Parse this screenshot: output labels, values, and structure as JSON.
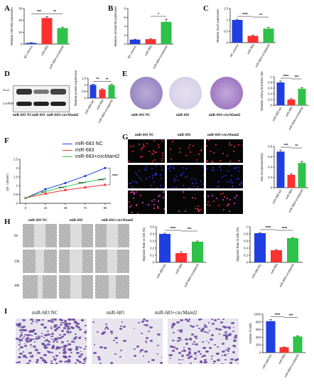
{
  "panels": {
    "A": "A",
    "B": "B",
    "C": "C",
    "D": "D",
    "E": "E",
    "F": "F",
    "G": "G",
    "H": "H",
    "I": "I"
  },
  "colors": {
    "blue": "#1f3fe0",
    "red": "#ff3030",
    "green": "#2ec24a",
    "purple": "#6a4aa0",
    "red_fluor": "#e0202a",
    "blue_fluor": "#2030c0"
  },
  "labels": {
    "d_blot": [
      "Sox2",
      "GAPDH"
    ],
    "d_lanes": [
      "miR-683 NC",
      "miR-683",
      "miR-683+circMaml2"
    ],
    "e_imgs": [
      "miR-683 NC",
      "miR-683",
      "miR-683+circMaml2"
    ],
    "g_cols": [
      "miR-683 NC",
      "miR-683",
      "miR-683+circMaml2"
    ],
    "h_cols": [
      "miR-683 NC",
      "miR-683",
      "miR-683+circMaml2"
    ],
    "h_rows": [
      "0h",
      "24h",
      "48h"
    ],
    "i_cols": [
      "miR-683  NC",
      "miR-683",
      "miR-683+circMaml2"
    ]
  },
  "chart_data": [
    {
      "id": "A",
      "type": "bar",
      "ylabel": "Relative miR-683 expression",
      "categories": [
        "NC mimics",
        "miR-683",
        "miR-683+circMaml2"
      ],
      "values": [
        1,
        22,
        13.5
      ],
      "errors": [
        0.3,
        1.2,
        0.8
      ],
      "ylim": [
        0,
        30
      ],
      "yticks": [
        0,
        10,
        20,
        30
      ],
      "sig": [
        "***",
        "**"
      ]
    },
    {
      "id": "B",
      "type": "bar",
      "ylabel": "Relative circMaml2 expression",
      "categories": [
        "NC mimics",
        "miR-683",
        "miR-683+circMaml2"
      ],
      "values": [
        1,
        1.1,
        5
      ],
      "errors": [
        0.1,
        0.1,
        0.6
      ],
      "ylim": [
        0,
        8
      ],
      "yticks": [
        0,
        2,
        4,
        6,
        8
      ],
      "sig": [
        "*"
      ]
    },
    {
      "id": "C",
      "type": "bar",
      "ylabel": "Relative Sox2 expression",
      "categories": [
        "NC mimics",
        "miR-683",
        "miR-683+circMaml2"
      ],
      "values": [
        1,
        0.3,
        0.62
      ],
      "errors": [
        0.03,
        0.03,
        0.05
      ],
      "ylim": [
        0,
        1.5
      ],
      "yticks": [
        0,
        0.5,
        1.0,
        1.5
      ],
      "sig": [
        "****",
        "**"
      ]
    },
    {
      "id": "D",
      "type": "bar",
      "ylabel": "Relative protein expression",
      "categories": [
        "miR-683 NC",
        "miR-683",
        "miR-683+circMaml2"
      ],
      "values": [
        1,
        0.65,
        0.98
      ],
      "errors": [
        0.05,
        0.05,
        0.06
      ],
      "ylim": [
        0,
        1.5
      ],
      "yticks": [
        0,
        0.5,
        1.0,
        1.5
      ],
      "sig": [
        "**",
        "**"
      ]
    },
    {
      "id": "E",
      "type": "bar",
      "ylabel": "Relative colony formation rate",
      "categories": [
        "miR-683 NC",
        "miR-683",
        "miR-683+circMaml2"
      ],
      "values": [
        0.8,
        0.2,
        0.58
      ],
      "errors": [
        0.05,
        0.03,
        0.04
      ],
      "ylim": [
        0,
        1.0
      ],
      "yticks": [
        0,
        0.2,
        0.4,
        0.6,
        0.8,
        1.0
      ],
      "sig": [
        "****",
        "***"
      ]
    },
    {
      "id": "F",
      "type": "line",
      "ylabel": "OD（450nm）",
      "x": [
        0,
        24,
        48,
        72,
        96
      ],
      "xticks": [
        0,
        24,
        48,
        72,
        96
      ],
      "ylim": [
        0,
        2.5
      ],
      "yticks": [
        0,
        0.5,
        1.0,
        1.5,
        2.0,
        2.5
      ],
      "series": [
        {
          "name": "miR-683 NC",
          "values": [
            0.3,
            0.8,
            1.15,
            1.55,
            2.0
          ]
        },
        {
          "name": "miR-683",
          "values": [
            0.3,
            0.55,
            0.75,
            0.9,
            1.05
          ]
        },
        {
          "name": "miR-683+circMaml2",
          "values": [
            0.3,
            0.68,
            0.95,
            1.2,
            1.4
          ]
        }
      ],
      "sig": [
        "**",
        "****",
        "****",
        "****"
      ]
    },
    {
      "id": "G",
      "type": "bar",
      "ylabel": "Edu incorporation(%)",
      "categories": [
        "miR-683 NC",
        "miR-683",
        "miR-683+circMaml2"
      ],
      "values": [
        0.7,
        0.25,
        0.48
      ],
      "errors": [
        0.03,
        0.02,
        0.03
      ],
      "ylim": [
        0,
        0.8
      ],
      "yticks": [
        0,
        0.2,
        0.4,
        0.6,
        0.8
      ],
      "sig": [
        "***",
        "**"
      ]
    },
    {
      "id": "H1",
      "type": "bar",
      "ylabel": "Migration Rate at 24h  (%)",
      "categories": [
        "miR-683 NC",
        "miR-683",
        "miR-683+circMaml2"
      ],
      "values": [
        0.4,
        0.13,
        0.29
      ],
      "errors": [
        0.01,
        0.02,
        0.01
      ],
      "ylim": [
        0,
        0.5
      ],
      "yticks": [
        0,
        0.1,
        0.2,
        0.3,
        0.4,
        0.5
      ],
      "sig": [
        "****",
        "***"
      ]
    },
    {
      "id": "H2",
      "type": "bar",
      "ylabel": "Migration Rate at 48h  (%)",
      "categories": [
        "miR-683 NC",
        "miR-683",
        "miR-683+circMaml2"
      ],
      "values": [
        0.82,
        0.34,
        0.68
      ],
      "errors": [
        0.02,
        0.02,
        0.02
      ],
      "ylim": [
        0,
        1.0
      ],
      "yticks": [
        0,
        0.2,
        0.4,
        0.6,
        0.8,
        1.0
      ],
      "sig": [
        "****",
        "****"
      ]
    },
    {
      "id": "I",
      "type": "bar",
      "ylabel": "Number of cells",
      "categories": [
        "miR-683 NC",
        "miR-683",
        "miR-683+circMaml2"
      ],
      "values": [
        820,
        140,
        420
      ],
      "errors": [
        40,
        10,
        20
      ],
      "ylim": [
        0,
        1000
      ],
      "yticks": [
        0,
        200,
        400,
        600,
        800,
        1000
      ],
      "sig": [
        "****",
        "***"
      ]
    }
  ]
}
